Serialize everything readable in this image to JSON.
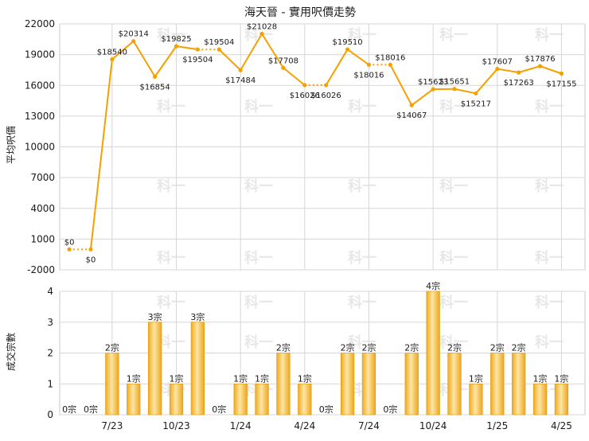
{
  "chart_data": [
    {
      "type": "line",
      "title": "海天晉 - 實用呎價走勢",
      "ylabel": "平均呎價",
      "ylim": [
        -2000,
        22000
      ],
      "yticks": [
        -2000,
        1000,
        4000,
        7000,
        10000,
        13000,
        16000,
        19000,
        22000
      ],
      "grid": true,
      "colors": {
        "line": "#f5a000",
        "marker": "#f5a000",
        "dotted": "#f5a000",
        "grid": "#d7d7d7",
        "text": "#1a1a1a"
      },
      "watermark": "科一",
      "points": [
        {
          "label": "$0",
          "value": 0
        },
        {
          "label": "$0",
          "value": 0
        },
        {
          "label": "$18540",
          "value": 18540
        },
        {
          "label": "$20314",
          "value": 20314
        },
        {
          "label": "$16854",
          "value": 16854
        },
        {
          "label": "$19825",
          "value": 19825
        },
        {
          "label": "$19504",
          "value": 19504
        },
        {
          "label": "$19504",
          "value": 19504
        },
        {
          "label": "$17484",
          "value": 17484
        },
        {
          "label": "$21028",
          "value": 21028
        },
        {
          "label": "$17708",
          "value": 17708
        },
        {
          "label": "$16026",
          "value": 16026
        },
        {
          "label": "$16026",
          "value": 16026
        },
        {
          "label": "$19510",
          "value": 19510
        },
        {
          "label": "$18016",
          "value": 18016
        },
        {
          "label": "$18016",
          "value": 18016
        },
        {
          "label": "$14067",
          "value": 14067
        },
        {
          "label": "$15623",
          "value": 15623
        },
        {
          "label": "$15651",
          "value": 15651
        },
        {
          "label": "$15217",
          "value": 15217
        },
        {
          "label": "$17607",
          "value": 17607
        },
        {
          "label": "$17263",
          "value": 17263
        },
        {
          "label": "$17876",
          "value": 17876
        },
        {
          "label": "$17155",
          "value": 17155
        }
      ]
    },
    {
      "type": "bar",
      "ylabel": "成交宗數",
      "ylim": [
        0,
        4
      ],
      "yticks": [
        0,
        1,
        2,
        3,
        4
      ],
      "grid": true,
      "categories": [
        "",
        "",
        "7/23",
        "",
        "",
        "10/23",
        "",
        "",
        "1/24",
        "",
        "",
        "4/24",
        "",
        "",
        "7/24",
        "",
        "",
        "10/24",
        "",
        "",
        "1/25",
        "",
        "",
        "4/25"
      ],
      "colors": {
        "bar": "#f2b134",
        "bar_light": "#fde2a0",
        "grid": "#d7d7d7",
        "text": "#1a1a1a"
      },
      "bars": [
        {
          "label": "0宗",
          "value": 0
        },
        {
          "label": "0宗",
          "value": 0
        },
        {
          "label": "2宗",
          "value": 2
        },
        {
          "label": "1宗",
          "value": 1
        },
        {
          "label": "3宗",
          "value": 3
        },
        {
          "label": "1宗",
          "value": 1
        },
        {
          "label": "3宗",
          "value": 3
        },
        {
          "label": "0宗",
          "value": 0
        },
        {
          "label": "1宗",
          "value": 1
        },
        {
          "label": "1宗",
          "value": 1
        },
        {
          "label": "2宗",
          "value": 2
        },
        {
          "label": "1宗",
          "value": 1
        },
        {
          "label": "0宗",
          "value": 0
        },
        {
          "label": "2宗",
          "value": 2
        },
        {
          "label": "2宗",
          "value": 2
        },
        {
          "label": "0宗",
          "value": 0
        },
        {
          "label": "2宗",
          "value": 2
        },
        {
          "label": "4宗",
          "value": 4
        },
        {
          "label": "2宗",
          "value": 2
        },
        {
          "label": "1宗",
          "value": 1
        },
        {
          "label": "2宗",
          "value": 2
        },
        {
          "label": "2宗",
          "value": 2
        },
        {
          "label": "1宗",
          "value": 1
        },
        {
          "label": "1宗",
          "value": 1
        }
      ]
    }
  ]
}
